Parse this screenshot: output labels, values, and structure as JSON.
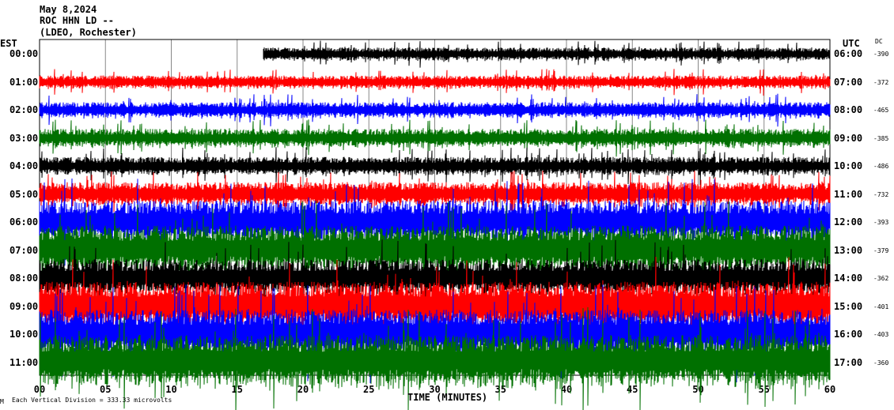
{
  "header": {
    "date": "May 8,2024",
    "station": "ROC HHN LD --",
    "network": "(LDEO, Rochester)"
  },
  "left_axis_title": "EST",
  "right_axis_title": "UTC",
  "dc_title": "DC",
  "footer": {
    "scale_note": "Each Vertical Division =  333.33 microvolts",
    "corner_mark": "M"
  },
  "chart_data": {
    "type": "line",
    "title": "May 8,2024 ROC HHN LD -- (LDEO, Rochester)",
    "xlabel": "TIME (MINUTES)",
    "xlim": [
      0,
      60
    ],
    "x_ticks": [
      "00",
      "05",
      "10",
      "15",
      "20",
      "25",
      "30",
      "35",
      "40",
      "45",
      "50",
      "55",
      "60"
    ],
    "grid": true,
    "colors": [
      "#000000",
      "#ff0000",
      "#0000ff",
      "#007000"
    ],
    "rows": [
      {
        "est": "00:00",
        "utc": "06:00",
        "dc": "-390",
        "start_min": 17,
        "noise": 0.25
      },
      {
        "est": "01:00",
        "utc": "07:00",
        "dc": "-372",
        "start_min": 0,
        "noise": 0.25
      },
      {
        "est": "02:00",
        "utc": "08:00",
        "dc": "-465",
        "start_min": 0,
        "noise": 0.3
      },
      {
        "est": "03:00",
        "utc": "09:00",
        "dc": "-385",
        "start_min": 0,
        "noise": 0.35
      },
      {
        "est": "04:00",
        "utc": "10:00",
        "dc": "-486",
        "start_min": 0,
        "noise": 0.35
      },
      {
        "est": "05:00",
        "utc": "11:00",
        "dc": "-732",
        "start_min": 0,
        "noise": 0.45
      },
      {
        "est": "06:00",
        "utc": "12:00",
        "dc": "-393",
        "start_min": 0,
        "noise": 0.8
      },
      {
        "est": "07:00",
        "utc": "13:00",
        "dc": "-379",
        "start_min": 0,
        "noise": 0.9
      },
      {
        "est": "08:00",
        "utc": "14:00",
        "dc": "-362",
        "start_min": 0,
        "noise": 0.7
      },
      {
        "est": "09:00",
        "utc": "15:00",
        "dc": "-401",
        "start_min": 0,
        "noise": 0.9
      },
      {
        "est": "10:00",
        "utc": "16:00",
        "dc": "-403",
        "start_min": 0,
        "noise": 0.9
      },
      {
        "est": "11:00",
        "utc": "17:00",
        "dc": "-360",
        "start_min": 0,
        "noise": 1.0
      }
    ]
  }
}
